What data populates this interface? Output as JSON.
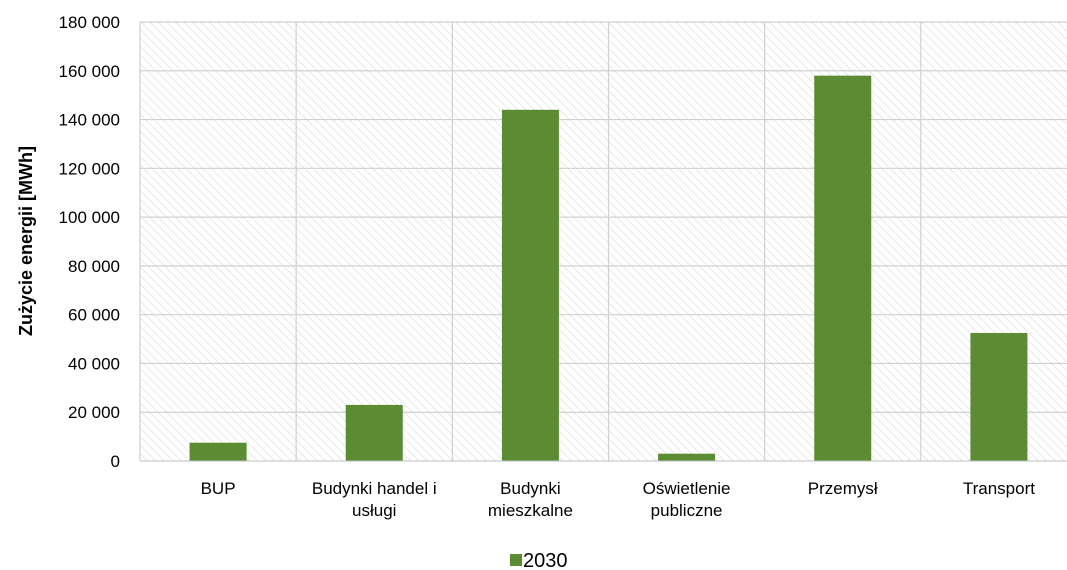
{
  "chart_data": {
    "type": "bar",
    "categories": [
      [
        "BUP"
      ],
      [
        "Budynki handel i",
        "usługi"
      ],
      [
        "Budynki",
        "mieszkalne"
      ],
      [
        "Oświetlenie",
        "publiczne"
      ],
      [
        "Przemysł"
      ],
      [
        "Transport"
      ]
    ],
    "series": [
      {
        "name": "2030",
        "color": "#5B8C33",
        "values": [
          7500,
          23000,
          144000,
          3000,
          158000,
          52500
        ]
      }
    ],
    "ylabel": "Zużycie energii [MWh]",
    "ylim": [
      0,
      180000
    ],
    "yticks": [
      0,
      20000,
      40000,
      60000,
      80000,
      100000,
      120000,
      140000,
      160000,
      180000
    ],
    "ytick_labels": [
      "0",
      "20 000",
      "40 000",
      "60 000",
      "80 000",
      "100 000",
      "120 000",
      "140 000",
      "160 000",
      "180 000"
    ],
    "grid": true,
    "plot_background": "hatched light gray",
    "legend_position": "bottom-center"
  }
}
